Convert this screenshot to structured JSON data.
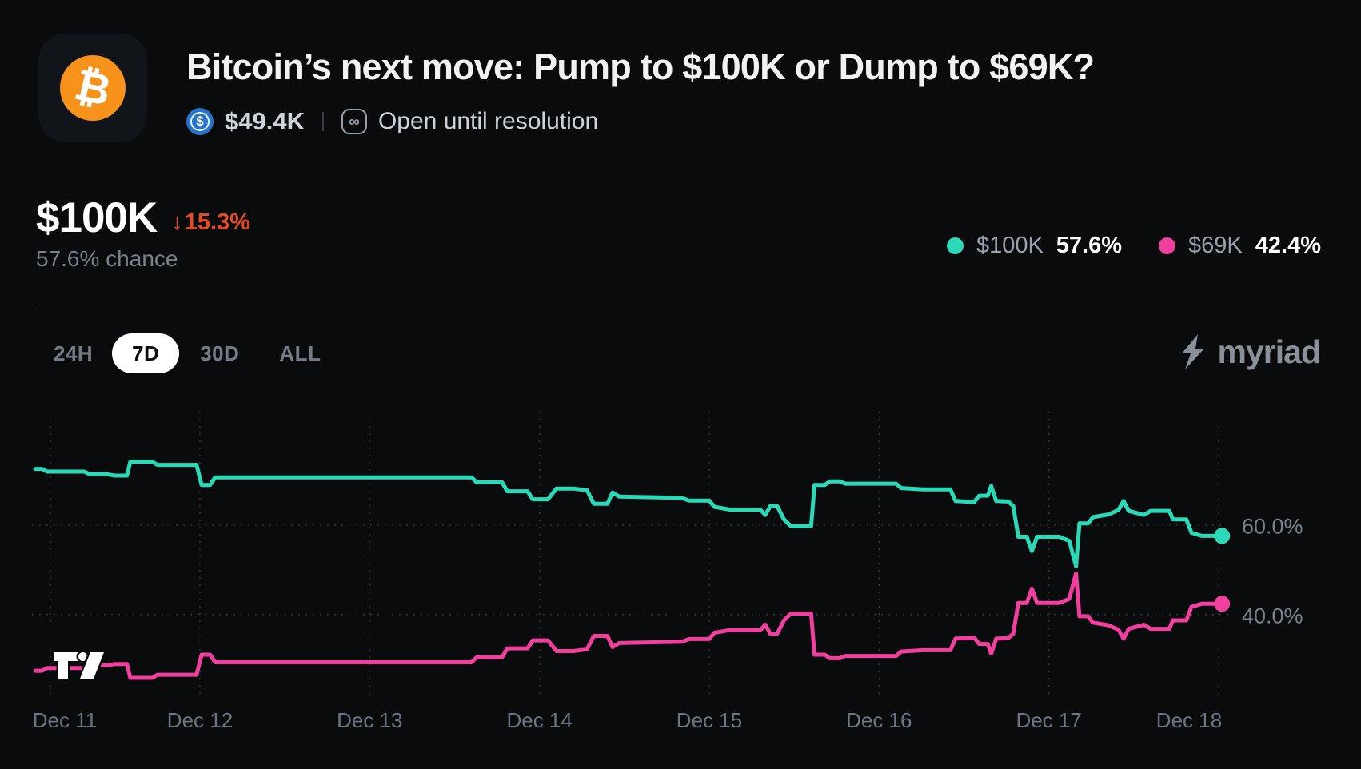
{
  "header": {
    "coin_symbol": "₿",
    "title": "Bitcoin’s next move: Pump to $100K or Dump to $69K?",
    "usdc_symbol": "$",
    "volume": "$49.4K",
    "link_glyph": "∞",
    "status": "Open until resolution"
  },
  "stat": {
    "outcome": "$100K",
    "change_arrow": "↓",
    "change": "15.3%",
    "chance": "57.6% chance"
  },
  "legend": {
    "0": {
      "label": "$100K",
      "value": "57.6%",
      "color": "#2cd9b6"
    },
    "1": {
      "label": "$69K",
      "value": "42.4%",
      "color": "#f13f9d"
    }
  },
  "tabs": {
    "0": {
      "label": "24H",
      "active": false
    },
    "1": {
      "label": "7D",
      "active": true
    },
    "2": {
      "label": "30D",
      "active": false
    },
    "3": {
      "label": "ALL",
      "active": false
    }
  },
  "brand": {
    "name": "myriad"
  },
  "chart_data": {
    "type": "line",
    "title": "Outcome probability, 7 day window",
    "x_unit": "days (0 = Dec 11)",
    "x_ticks": [
      "Dec 11",
      "Dec 12",
      "Dec 13",
      "Dec 14",
      "Dec 15",
      "Dec 16",
      "Dec 17",
      "Dec 18"
    ],
    "y_gridlines": [
      60.0,
      40.0
    ],
    "y_tick_labels": [
      "60.0%",
      "40.0%"
    ],
    "y_range_shown": [
      22,
      86
    ],
    "grid": "dashed",
    "legend_position": "top-right",
    "series": [
      {
        "name": "$100K",
        "color": "#2cd9b6",
        "final_value": 57.6,
        "points": [
          [
            0.03,
            72.6
          ],
          [
            0.07,
            72.6
          ],
          [
            0.1,
            72.0
          ],
          [
            0.32,
            72.0
          ],
          [
            0.35,
            71.4
          ],
          [
            0.45,
            71.4
          ],
          [
            0.5,
            71.1
          ],
          [
            0.57,
            71.1
          ],
          [
            0.59,
            74.2
          ],
          [
            0.72,
            74.2
          ],
          [
            0.75,
            73.5
          ],
          [
            0.98,
            73.5
          ],
          [
            1.01,
            69.0
          ],
          [
            1.06,
            69.0
          ],
          [
            1.09,
            70.7
          ],
          [
            2.6,
            70.7
          ],
          [
            2.63,
            69.6
          ],
          [
            2.78,
            69.6
          ],
          [
            2.81,
            67.6
          ],
          [
            2.93,
            67.6
          ],
          [
            2.96,
            65.8
          ],
          [
            3.05,
            65.8
          ],
          [
            3.1,
            68.2
          ],
          [
            3.2,
            68.2
          ],
          [
            3.28,
            67.8
          ],
          [
            3.32,
            64.8
          ],
          [
            3.4,
            64.8
          ],
          [
            3.43,
            67.3
          ],
          [
            3.47,
            66.4
          ],
          [
            3.84,
            66.1
          ],
          [
            3.88,
            65.5
          ],
          [
            4.0,
            65.5
          ],
          [
            4.03,
            64.1
          ],
          [
            4.12,
            63.5
          ],
          [
            4.3,
            63.5
          ],
          [
            4.33,
            62.3
          ],
          [
            4.36,
            64.3
          ],
          [
            4.4,
            64.3
          ],
          [
            4.44,
            61.3
          ],
          [
            4.48,
            59.8
          ],
          [
            4.6,
            59.8
          ],
          [
            4.62,
            69.0
          ],
          [
            4.68,
            69.0
          ],
          [
            4.71,
            69.8
          ],
          [
            4.77,
            69.8
          ],
          [
            4.8,
            69.3
          ],
          [
            5.1,
            69.3
          ],
          [
            5.13,
            68.3
          ],
          [
            5.26,
            68.0
          ],
          [
            5.42,
            68.0
          ],
          [
            5.45,
            65.4
          ],
          [
            5.56,
            65.2
          ],
          [
            5.59,
            66.6
          ],
          [
            5.64,
            66.6
          ],
          [
            5.66,
            68.8
          ],
          [
            5.69,
            65.4
          ],
          [
            5.76,
            65.3
          ],
          [
            5.79,
            64.3
          ],
          [
            5.82,
            57.4
          ],
          [
            5.87,
            57.4
          ],
          [
            5.9,
            54.2
          ],
          [
            5.93,
            57.4
          ],
          [
            6.06,
            57.4
          ],
          [
            6.12,
            56.5
          ],
          [
            6.16,
            50.8
          ],
          [
            6.18,
            60.4
          ],
          [
            6.23,
            60.4
          ],
          [
            6.26,
            61.8
          ],
          [
            6.35,
            62.4
          ],
          [
            6.41,
            63.4
          ],
          [
            6.44,
            65.4
          ],
          [
            6.47,
            63.2
          ],
          [
            6.56,
            62.3
          ],
          [
            6.6,
            63.2
          ],
          [
            6.71,
            63.2
          ],
          [
            6.73,
            61.3
          ],
          [
            6.81,
            61.3
          ],
          [
            6.84,
            58.3
          ],
          [
            6.9,
            57.6
          ],
          [
            7.02,
            57.6
          ]
        ]
      },
      {
        "name": "$69K",
        "color": "#f13f9d",
        "final_value": 42.4,
        "points": [
          [
            0.03,
            27.4
          ],
          [
            0.07,
            27.4
          ],
          [
            0.1,
            28.0
          ],
          [
            0.32,
            28.0
          ],
          [
            0.35,
            28.6
          ],
          [
            0.45,
            28.6
          ],
          [
            0.5,
            28.9
          ],
          [
            0.57,
            28.9
          ],
          [
            0.59,
            25.8
          ],
          [
            0.72,
            25.8
          ],
          [
            0.75,
            26.5
          ],
          [
            0.98,
            26.5
          ],
          [
            1.01,
            31.0
          ],
          [
            1.06,
            31.0
          ],
          [
            1.09,
            29.3
          ],
          [
            2.6,
            29.3
          ],
          [
            2.63,
            30.4
          ],
          [
            2.78,
            30.4
          ],
          [
            2.81,
            32.4
          ],
          [
            2.93,
            32.4
          ],
          [
            2.96,
            34.2
          ],
          [
            3.05,
            34.2
          ],
          [
            3.1,
            31.8
          ],
          [
            3.2,
            31.8
          ],
          [
            3.28,
            32.2
          ],
          [
            3.32,
            35.2
          ],
          [
            3.4,
            35.2
          ],
          [
            3.43,
            32.7
          ],
          [
            3.47,
            33.6
          ],
          [
            3.84,
            33.9
          ],
          [
            3.88,
            34.5
          ],
          [
            4.0,
            34.5
          ],
          [
            4.03,
            35.9
          ],
          [
            4.12,
            36.5
          ],
          [
            4.3,
            36.5
          ],
          [
            4.33,
            37.7
          ],
          [
            4.36,
            35.7
          ],
          [
            4.4,
            35.7
          ],
          [
            4.44,
            38.7
          ],
          [
            4.48,
            40.2
          ],
          [
            4.6,
            40.2
          ],
          [
            4.62,
            31.0
          ],
          [
            4.68,
            31.0
          ],
          [
            4.71,
            30.2
          ],
          [
            4.77,
            30.2
          ],
          [
            4.8,
            30.7
          ],
          [
            5.1,
            30.7
          ],
          [
            5.13,
            31.7
          ],
          [
            5.26,
            32.0
          ],
          [
            5.42,
            32.0
          ],
          [
            5.45,
            34.6
          ],
          [
            5.56,
            34.8
          ],
          [
            5.59,
            33.4
          ],
          [
            5.64,
            33.4
          ],
          [
            5.66,
            31.2
          ],
          [
            5.69,
            34.6
          ],
          [
            5.76,
            34.7
          ],
          [
            5.79,
            35.7
          ],
          [
            5.82,
            42.6
          ],
          [
            5.87,
            42.6
          ],
          [
            5.9,
            45.8
          ],
          [
            5.93,
            42.6
          ],
          [
            6.06,
            42.6
          ],
          [
            6.12,
            43.5
          ],
          [
            6.16,
            49.2
          ],
          [
            6.18,
            39.6
          ],
          [
            6.23,
            39.6
          ],
          [
            6.26,
            38.2
          ],
          [
            6.35,
            37.6
          ],
          [
            6.41,
            36.6
          ],
          [
            6.44,
            34.6
          ],
          [
            6.47,
            36.8
          ],
          [
            6.56,
            37.7
          ],
          [
            6.6,
            36.8
          ],
          [
            6.71,
            36.8
          ],
          [
            6.73,
            38.7
          ],
          [
            6.81,
            38.7
          ],
          [
            6.84,
            41.7
          ],
          [
            6.9,
            42.4
          ],
          [
            7.02,
            42.4
          ]
        ]
      }
    ]
  }
}
